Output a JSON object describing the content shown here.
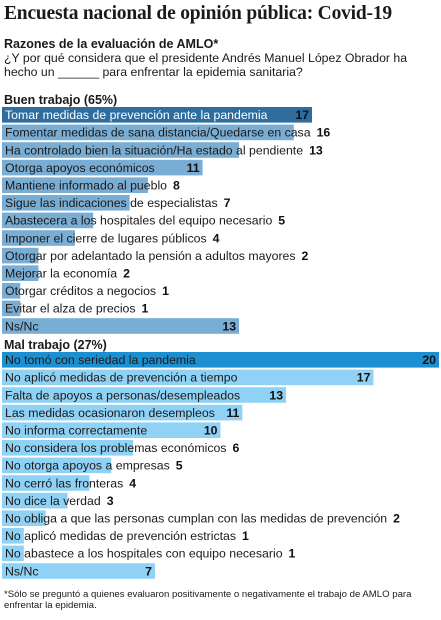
{
  "header": {
    "title": "Encuesta nacional de opinión pública: Covid-19",
    "subtitle": "Razones de la evaluación de AMLO*",
    "question": "¿Y por qué considera que el presidente Andrés Manuel López Obrador ha hecho un ______ para enfrentar la epidemia sanitaria?"
  },
  "footnote": "*Sólo se preguntó a quienes evaluaron positivamente o negativamente el trabajo de AMLO para enfrentar la epidemia.",
  "colors": {
    "highlight": "#2f6d9e",
    "good_bar": "#7aadd4",
    "bad_highlight": "#1b8fd0",
    "bad_bar": "#8fd2f5"
  },
  "chart_data": [
    {
      "type": "bar",
      "orientation": "horizontal",
      "title": "Buen trabajo (65%)",
      "xlim": [
        0,
        17
      ],
      "categories": [
        "Tomar medidas de prevención ante la pandemia",
        "Fomentar medidas de sana distancia/Quedarse en casa",
        "Ha controlado bien la situación/Ha estado al pendiente",
        "Otorga apoyos económicos",
        "Mantiene informado al pueblo",
        "Sigue las indicaciones de especialistas",
        "Abastecera a los hospitales del equipo necesario",
        "Imponer el cierre de lugares públicos",
        "Otorgar por adelantado la pensión a adultos mayores",
        "Mejorar la economía",
        "Otorgar créditos a negocios",
        "Evitar el alza de precios",
        "Ns/Nc"
      ],
      "values": [
        17,
        16,
        13,
        11,
        8,
        7,
        5,
        4,
        2,
        2,
        1,
        1,
        13
      ]
    },
    {
      "type": "bar",
      "orientation": "horizontal",
      "title": "Mal trabajo (27%)",
      "xlim": [
        0,
        20
      ],
      "categories": [
        "No tomó con seriedad la pandemia",
        "No aplicó medidas de prevención a tiempo",
        "Falta de apoyos a personas/desempleados",
        "Las medidas ocasionaron desempleos",
        "No informa correctamente",
        "No considera los problemas económicos",
        "No otorga apoyos a empresas",
        "No cerró las fronteras",
        "No dice la verdad",
        "No obliga a que las personas cumplan con las medidas de prevención",
        "No aplicó medidas de prevención estrictas",
        "No abastece a los hospitales con equipo necesario",
        "Ns/Nc"
      ],
      "values": [
        20,
        17,
        13,
        11,
        10,
        6,
        5,
        4,
        3,
        2,
        1,
        1,
        7
      ]
    }
  ]
}
